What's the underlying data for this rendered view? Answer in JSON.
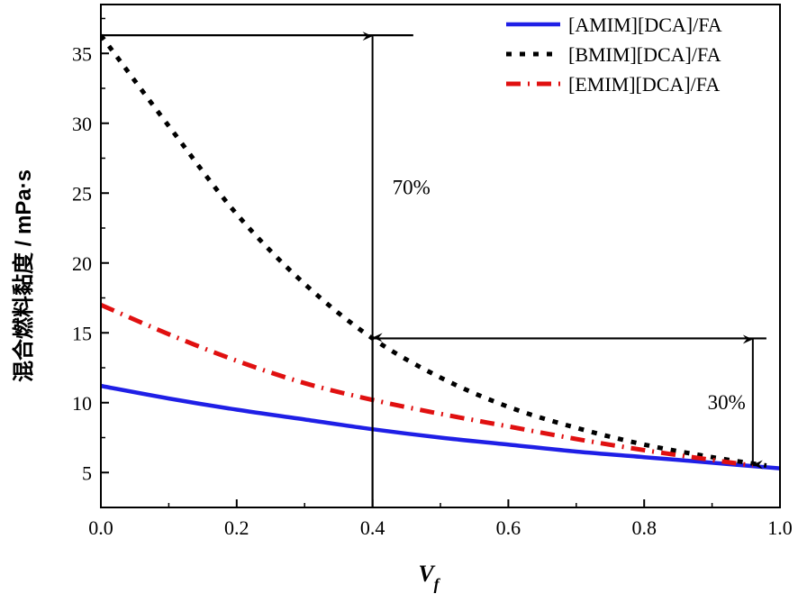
{
  "chart_data": {
    "type": "line",
    "title": "",
    "xlabel": "V",
    "xlabel_subscript": "f",
    "ylabel": "混合燃料黏度 / mPa·s",
    "xlim": [
      0.0,
      1.0
    ],
    "ylim": [
      2.5,
      38.5
    ],
    "x_ticks": [
      0.0,
      0.2,
      0.4,
      0.6,
      0.8,
      1.0
    ],
    "x_tick_labels": [
      "0.0",
      "0.2",
      "0.4",
      "0.6",
      "0.8",
      "1.0"
    ],
    "y_ticks": [
      5,
      10,
      15,
      20,
      25,
      30,
      35
    ],
    "y_tick_labels": [
      "5",
      "10",
      "15",
      "20",
      "25",
      "30",
      "35"
    ],
    "legend_position": "top-right",
    "series": [
      {
        "name": "[AMIM][DCA]/FA",
        "style": "solid",
        "color": "#1f1fe6",
        "x": [
          0.0,
          0.1,
          0.2,
          0.3,
          0.4,
          0.5,
          0.6,
          0.7,
          0.8,
          0.9,
          1.0
        ],
        "y": [
          11.2,
          10.3,
          9.5,
          8.8,
          8.1,
          7.5,
          7.0,
          6.5,
          6.1,
          5.7,
          5.3
        ]
      },
      {
        "name": "[BMIM][DCA]/FA",
        "style": "dotted",
        "color": "#000000",
        "x": [
          0.0,
          0.1,
          0.2,
          0.3,
          0.4,
          0.5,
          0.6,
          0.7,
          0.8,
          0.9,
          0.98
        ],
        "y": [
          36.3,
          29.8,
          23.5,
          18.5,
          14.6,
          11.8,
          9.7,
          8.2,
          7.0,
          6.1,
          5.5
        ]
      },
      {
        "name": "[EMIM][DCA]/FA",
        "style": "dash-dot",
        "color": "#e01010",
        "x": [
          0.0,
          0.1,
          0.2,
          0.3,
          0.4,
          0.5,
          0.6,
          0.7,
          0.8,
          0.9,
          0.96
        ],
        "y": [
          17.0,
          14.9,
          13.0,
          11.4,
          10.2,
          9.2,
          8.3,
          7.4,
          6.6,
          5.9,
          5.5
        ]
      }
    ],
    "reference_lines": [
      {
        "kind": "horizontal",
        "y": 36.3,
        "x_from": 0.0,
        "x_to": 0.46
      },
      {
        "kind": "horizontal",
        "y": 14.6,
        "x_from": 0.4,
        "x_to": 0.98
      },
      {
        "kind": "vertical",
        "x": 0.4,
        "y_from": 2.5,
        "y_to": 14.6
      }
    ],
    "arrows": [
      {
        "x": 0.4,
        "y_from": 36.3,
        "y_to": 14.6,
        "label": "70%"
      },
      {
        "x": 0.96,
        "y_from": 14.6,
        "y_to": 5.5,
        "label": "30%"
      }
    ]
  }
}
